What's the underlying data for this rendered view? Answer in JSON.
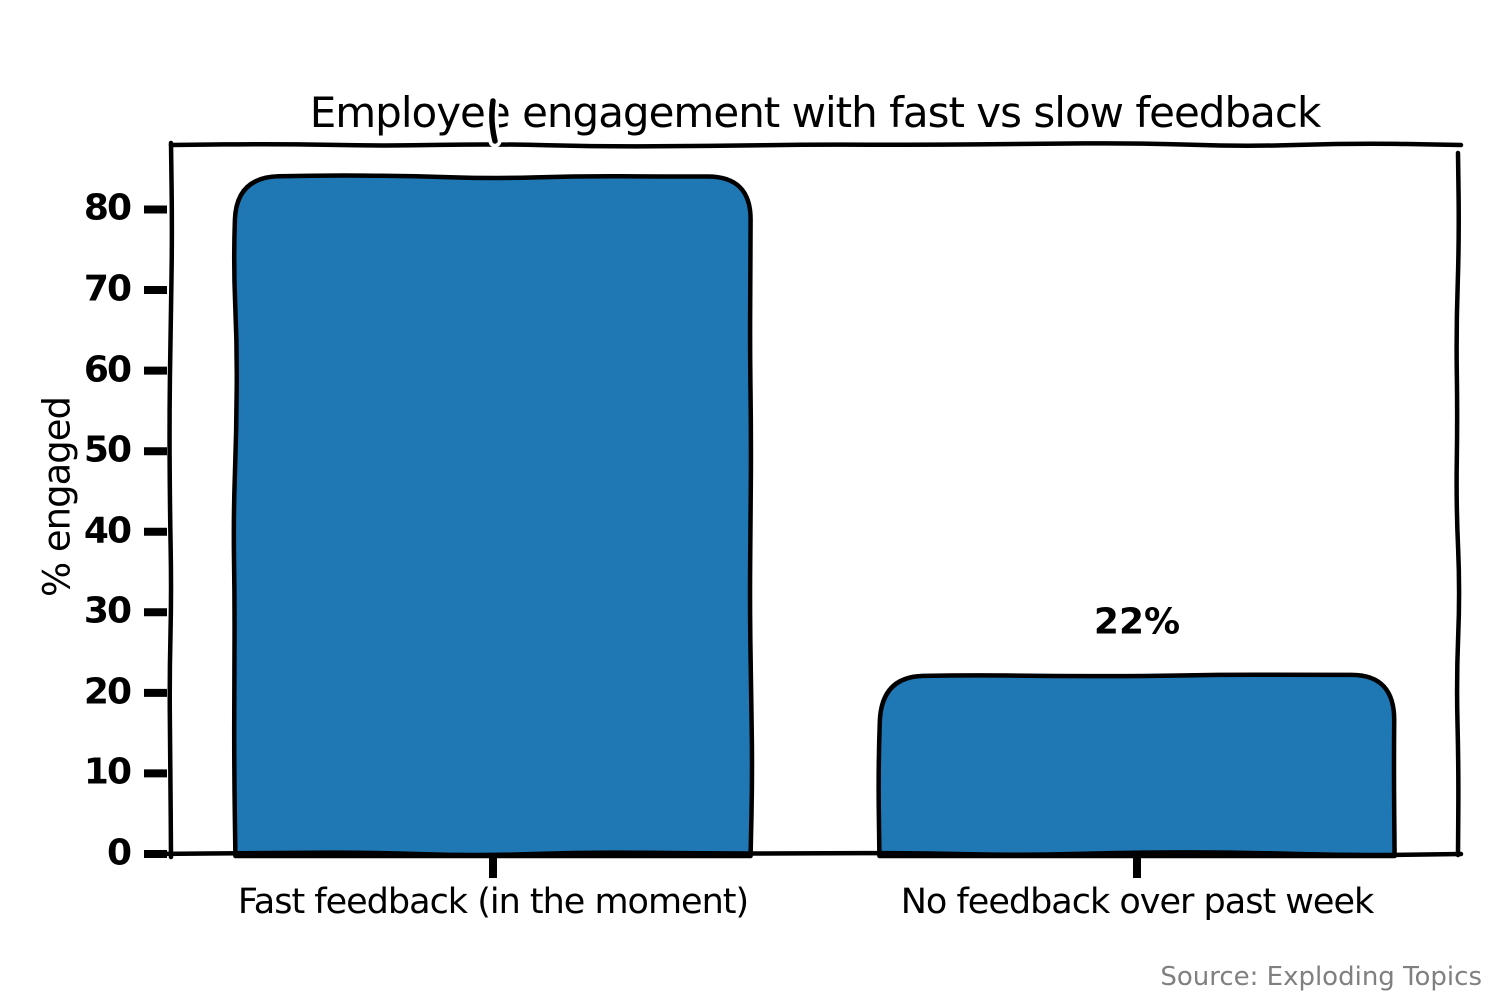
{
  "chart_data": {
    "type": "bar",
    "title": "Employee engagement with fast vs slow feedback",
    "ylabel": "% engaged",
    "xlabel": "",
    "categories": [
      "Fast feedback (in the moment)",
      "No feedback over past week"
    ],
    "values": [
      84,
      22
    ],
    "bar_value_labels": [
      "",
      "22%"
    ],
    "yticks": [
      0,
      10,
      20,
      30,
      40,
      50,
      60,
      70,
      80
    ],
    "ylim": [
      0,
      88
    ],
    "grid": false,
    "legend": null,
    "style": "xkcd-hand-drawn",
    "bar_color": "#1f77b4",
    "bar_edge_color": "#000000",
    "axis_color": "#000000"
  },
  "source_note": {
    "label": "Source: Exploding Topics",
    "color": "#808080"
  }
}
